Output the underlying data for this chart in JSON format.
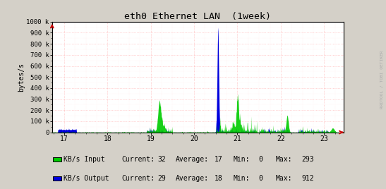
{
  "title": "eth0 Ethernet LAN  (1week)",
  "ylabel": "bytes/s",
  "xlabel_ticks": [
    17,
    18,
    19,
    20,
    21,
    22,
    23
  ],
  "xmin": 16.72,
  "xmax": 23.45,
  "ymin": 0,
  "ymax": 1000000,
  "yticks": [
    0,
    100000,
    200000,
    300000,
    400000,
    500000,
    600000,
    700000,
    800000,
    900000,
    1000000
  ],
  "bg_color": "#d4d0c8",
  "plot_bg_color": "#ffffff",
  "grid_color": "#ff9999",
  "input_color": "#00cc00",
  "output_color": "#0000ff",
  "input_fill_color": "#00cc00",
  "output_fill_color": "#0000dd",
  "title_color": "#000000",
  "legend_input_label": "KB/s Input",
  "legend_output_label": "KB/s Output",
  "current_in": 32,
  "average_in": 17,
  "min_in": 0,
  "max_in": 293,
  "current_out": 29,
  "average_out": 18,
  "min_out": 0,
  "max_out": 912,
  "side_text": "RRDTOOL / TOBI OETIKER",
  "arrow_color": "#cc0000"
}
